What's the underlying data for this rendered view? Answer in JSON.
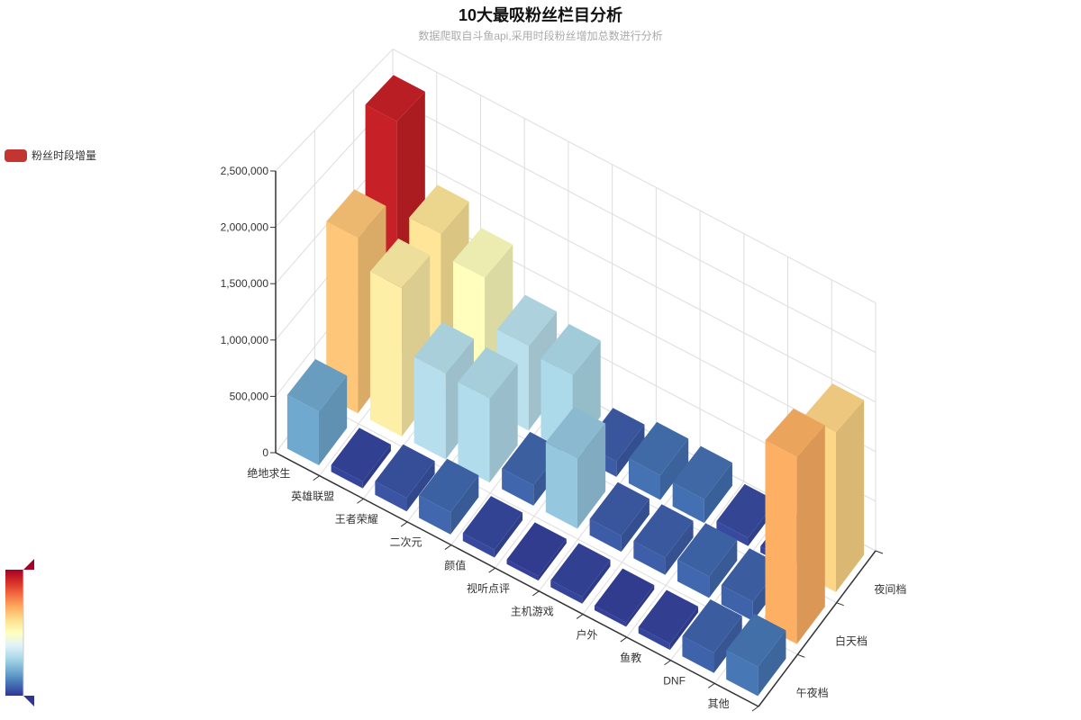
{
  "chart_data": {
    "type": "bar3d",
    "title": "10大最吸粉丝栏目分析",
    "subtitle": "数据爬取自斗鱼api,采用时段粉丝增加总数进行分析",
    "legend": {
      "label": "粉丝时段增量",
      "color": "#c23531",
      "position": "top-left"
    },
    "categories": [
      "绝地求生",
      "英雄联盟",
      "王者荣耀",
      "二次元",
      "颜值",
      "视听点评",
      "主机游戏",
      "户外",
      "鱼教",
      "DNF",
      "其他"
    ],
    "periods": [
      "午夜档",
      "白天档",
      "夜间档"
    ],
    "z_ticks": [
      "0",
      "500,000",
      "1,000,000",
      "1,500,000",
      "2,000,000",
      "2,500,000"
    ],
    "z_range": [
      0,
      2500000
    ],
    "grid": true,
    "visual_map": {
      "min": 0,
      "max": 2500000,
      "orientation": "vertical",
      "position": "bottom-left"
    },
    "series": [
      {
        "name": "午夜档",
        "values": [
          480000,
          60000,
          120000,
          200000,
          70000,
          40000,
          60000,
          40000,
          55000,
          180000,
          260000
        ]
      },
      {
        "name": "白天档",
        "values": [
          1630000,
          1380000,
          800000,
          780000,
          190000,
          650000,
          150000,
          160000,
          200000,
          180000,
          1740000
        ]
      },
      {
        "name": "夜间档",
        "values": [
          2330000,
          1460000,
          1260000,
          820000,
          760000,
          150000,
          240000,
          230000,
          80000,
          60000,
          1550000
        ]
      }
    ]
  }
}
